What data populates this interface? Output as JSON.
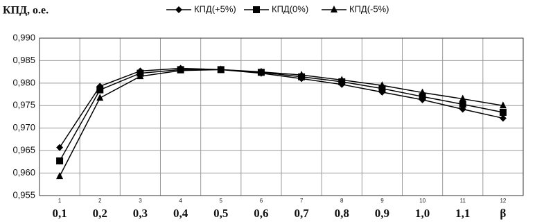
{
  "chart_data": {
    "type": "line",
    "title": "КПД, о.е.",
    "categories": [
      "0,1",
      "0,2",
      "0,3",
      "0,4",
      "0,5",
      "0,6",
      "0,7",
      "0,8",
      "0,9",
      "1,0",
      "1,1",
      "β"
    ],
    "point_numbers": [
      "1",
      "2",
      "3",
      "4",
      "5",
      "6",
      "7",
      "8",
      "9",
      "10",
      "11",
      "12"
    ],
    "series": [
      {
        "name": "КПД(+5%)",
        "color": "#000000",
        "marker": "diamond",
        "values": [
          0.9657,
          0.9793,
          0.9827,
          0.9833,
          0.983,
          0.9822,
          0.981,
          0.9797,
          0.978,
          0.9763,
          0.9742,
          0.9722
        ]
      },
      {
        "name": "КПД(0%)",
        "color": "#000000",
        "marker": "square",
        "values": [
          0.9627,
          0.9785,
          0.9822,
          0.983,
          0.983,
          0.9824,
          0.9814,
          0.9803,
          0.9788,
          0.977,
          0.9753,
          0.9735
        ]
      },
      {
        "name": "КПД(-5%)",
        "color": "#000000",
        "marker": "triangle",
        "values": [
          0.9593,
          0.9767,
          0.9815,
          0.9828,
          0.983,
          0.9825,
          0.9818,
          0.9807,
          0.9795,
          0.9779,
          0.9765,
          0.975
        ]
      }
    ],
    "ylim": [
      0.955,
      0.99
    ],
    "yticks": [
      {
        "value": 0.955,
        "label": "0,955"
      },
      {
        "value": 0.96,
        "label": "0,960"
      },
      {
        "value": 0.965,
        "label": "0,965"
      },
      {
        "value": 0.97,
        "label": "0,970"
      },
      {
        "value": 0.975,
        "label": "0,975"
      },
      {
        "value": 0.98,
        "label": "0,980"
      },
      {
        "value": 0.985,
        "label": "0,985"
      },
      {
        "value": 0.99,
        "label": "0,990"
      }
    ],
    "grid": true,
    "legend": "top"
  }
}
